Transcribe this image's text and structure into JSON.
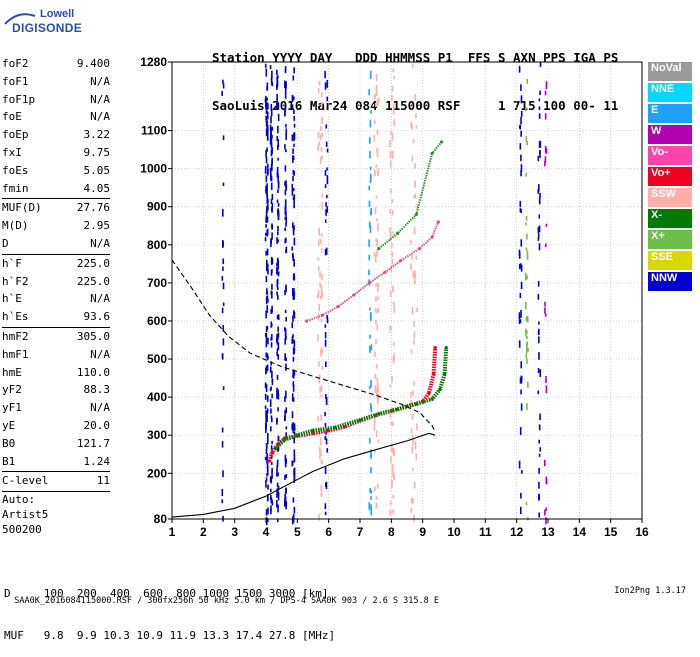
{
  "logo": {
    "line1": "Lowell",
    "line2": "DIGISONDE"
  },
  "header": {
    "line1": "Station YYYY DAY   DDD HHMMSS P1  FFS S AXN PPS IGA PS",
    "line2": "SaoLuis 2016 Mar24 084 115000 RSF     1 715 100 00- 11"
  },
  "params": {
    "group1": [
      {
        "name": "foF2",
        "value": "9.400"
      },
      {
        "name": "foF1",
        "value": "N/A"
      },
      {
        "name": "foF1p",
        "value": "N/A"
      },
      {
        "name": "foE",
        "value": "N/A"
      },
      {
        "name": "foEp",
        "value": "3.22"
      },
      {
        "name": "fxI",
        "value": "9.75"
      },
      {
        "name": "foEs",
        "value": "5.05"
      },
      {
        "name": "fmin",
        "value": "4.05"
      }
    ],
    "group2": [
      {
        "name": "MUF(D)",
        "value": "27.76"
      },
      {
        "name": "M(D)",
        "value": "2.95"
      },
      {
        "name": "D",
        "value": "N/A"
      }
    ],
    "group3": [
      {
        "name": "h`F",
        "value": "225.0"
      },
      {
        "name": "h`F2",
        "value": "225.0"
      },
      {
        "name": "h`E",
        "value": "N/A"
      },
      {
        "name": "h`Es",
        "value": "93.6"
      }
    ],
    "group4": [
      {
        "name": "hmF2",
        "value": "305.0"
      },
      {
        "name": "hmF1",
        "value": "N/A"
      },
      {
        "name": "hmE",
        "value": "110.0"
      },
      {
        "name": "yF2",
        "value": "88.3"
      },
      {
        "name": "yF1",
        "value": "N/A"
      },
      {
        "name": "yE",
        "value": "20.0"
      },
      {
        "name": "B0",
        "value": "121.7"
      },
      {
        "name": "B1",
        "value": "1.24"
      }
    ],
    "group5": [
      {
        "name": "C-level",
        "value": "11"
      }
    ],
    "auto": [
      "Auto:",
      "Artist5",
      "500200"
    ]
  },
  "legend": [
    {
      "label": "NoVal",
      "color": "#9a9a9a"
    },
    {
      "label": "NNE",
      "color": "#00d8ff"
    },
    {
      "label": "E",
      "color": "#1ea0ff"
    },
    {
      "label": "W",
      "color": "#b000b0"
    },
    {
      "label": "Vo-",
      "color": "#ff44aa"
    },
    {
      "label": "Vo+",
      "color": "#ee0020"
    },
    {
      "label": "SSW",
      "color": "#ffb0a8"
    },
    {
      "label": "X-",
      "color": "#007a00"
    },
    {
      "label": "X+",
      "color": "#6cc04a"
    },
    {
      "label": "SSE",
      "color": "#d8d800"
    },
    {
      "label": "NNW",
      "color": "#0000d0"
    }
  ],
  "muf_table": {
    "line1": "D     100  200  400  600  800 1000 1500 3000 [km]",
    "line2": "MUF   9.8  9.9 10.3 10.9 11.9 13.3 17.4 27.8 [MHz]"
  },
  "footer": {
    "text": "SAA0K_2016084115000.RSF / 300fx256h 50 kHz 5.0 km / DPS-4 SAA0K 903 / 2.6 S 315.8 E",
    "version": "Ion2Png 1.3.17"
  },
  "chart_data": {
    "type": "scatter",
    "xlim": [
      1,
      16
    ],
    "ylim": [
      80,
      1280
    ],
    "x_ticks": [
      1,
      2,
      3,
      4,
      5,
      6,
      7,
      8,
      9,
      10,
      11,
      12,
      13,
      14,
      15,
      16
    ],
    "y_ticks": [
      80,
      200,
      300,
      400,
      500,
      600,
      700,
      800,
      900,
      1000,
      1100,
      1280
    ],
    "grid": true,
    "legend_position": "right",
    "series": [
      {
        "name": "Vo+",
        "color": "#ee0020",
        "points": [
          [
            4.1,
            232
          ],
          [
            4.2,
            255
          ],
          [
            4.4,
            278
          ],
          [
            4.6,
            292
          ],
          [
            5.0,
            298
          ],
          [
            5.5,
            305
          ],
          [
            6.0,
            312
          ],
          [
            6.5,
            322
          ],
          [
            7.0,
            338
          ],
          [
            7.5,
            352
          ],
          [
            8.0,
            364
          ],
          [
            8.5,
            376
          ],
          [
            9.0,
            388
          ],
          [
            9.2,
            410
          ],
          [
            9.35,
            460
          ],
          [
            9.4,
            530
          ]
        ]
      },
      {
        "name": "X-",
        "color": "#007a00",
        "points": [
          [
            4.3,
            265
          ],
          [
            4.6,
            288
          ],
          [
            5.0,
            300
          ],
          [
            5.5,
            312
          ],
          [
            6.2,
            320
          ],
          [
            7.0,
            340
          ],
          [
            7.6,
            356
          ],
          [
            8.2,
            368
          ],
          [
            8.8,
            382
          ],
          [
            9.3,
            395
          ],
          [
            9.55,
            420
          ],
          [
            9.7,
            460
          ],
          [
            9.75,
            530
          ]
        ]
      },
      {
        "name": "Vo+ 2hop",
        "color": "#e0507a",
        "points": [
          [
            5.3,
            600
          ],
          [
            5.8,
            615
          ],
          [
            6.3,
            638
          ],
          [
            6.8,
            668
          ],
          [
            7.3,
            700
          ],
          [
            7.8,
            728
          ],
          [
            8.3,
            758
          ],
          [
            8.9,
            790
          ],
          [
            9.3,
            820
          ],
          [
            9.5,
            860
          ]
        ]
      },
      {
        "name": "X- 2hop",
        "color": "#2f8f2f",
        "points": [
          [
            7.6,
            790
          ],
          [
            8.2,
            830
          ],
          [
            8.8,
            880
          ],
          [
            9.3,
            1040
          ],
          [
            9.6,
            1070
          ]
        ]
      },
      {
        "name": "solid",
        "color": "#000000",
        "points": [
          [
            1.0,
            85
          ],
          [
            2.0,
            92
          ],
          [
            3.0,
            108
          ],
          [
            4.0,
            140
          ],
          [
            4.8,
            175
          ],
          [
            5.5,
            205
          ],
          [
            6.5,
            238
          ],
          [
            7.5,
            262
          ],
          [
            8.5,
            285
          ],
          [
            9.2,
            305
          ],
          [
            9.4,
            300
          ]
        ]
      },
      {
        "name": "dashed",
        "color": "#000000",
        "points": [
          [
            1.0,
            760
          ],
          [
            1.6,
            690
          ],
          [
            2.2,
            615
          ],
          [
            2.8,
            560
          ],
          [
            3.5,
            515
          ],
          [
            4.5,
            480
          ],
          [
            5.5,
            455
          ],
          [
            6.5,
            430
          ],
          [
            7.5,
            405
          ],
          [
            8.3,
            382
          ],
          [
            8.9,
            360
          ],
          [
            9.3,
            325
          ],
          [
            9.4,
            310
          ]
        ]
      }
    ]
  }
}
